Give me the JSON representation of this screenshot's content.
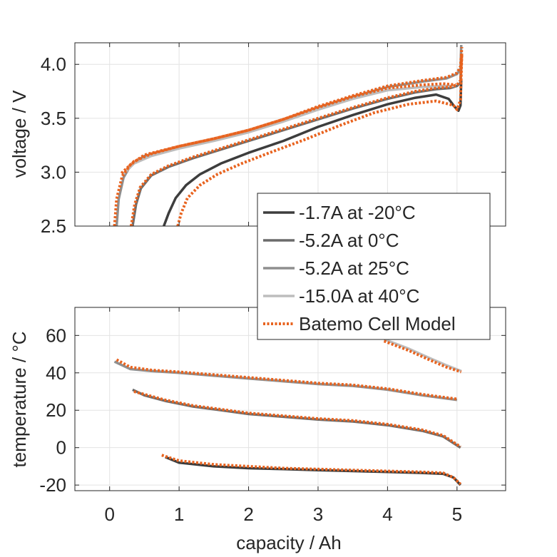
{
  "chart_data": [
    {
      "type": "line",
      "ylabel": "voltage / V",
      "xlim": [
        -0.5,
        5.7
      ],
      "ylim": [
        2.5,
        4.2
      ],
      "xticks": [
        0,
        1,
        2,
        3,
        4,
        5
      ],
      "yticks": [
        2.5,
        3.0,
        3.5,
        4.0
      ],
      "ytick_labels": [
        "2.5",
        "3.0",
        "3.5",
        "4.0"
      ],
      "grid": true,
      "series": [
        {
          "name": "-1.7A at -20°C",
          "color": "#3d3d3d",
          "style": "solid",
          "points": [
            [
              0.78,
              2.5
            ],
            [
              0.85,
              2.62
            ],
            [
              0.95,
              2.76
            ],
            [
              1.1,
              2.88
            ],
            [
              1.3,
              2.98
            ],
            [
              1.6,
              3.08
            ],
            [
              2.0,
              3.18
            ],
            [
              2.5,
              3.29
            ],
            [
              3.0,
              3.42
            ],
            [
              3.5,
              3.53
            ],
            [
              4.0,
              3.63
            ],
            [
              4.4,
              3.69
            ],
            [
              4.7,
              3.72
            ],
            [
              4.88,
              3.68
            ],
            [
              4.96,
              3.61
            ],
            [
              5.02,
              3.57
            ],
            [
              5.05,
              3.62
            ],
            [
              5.06,
              3.85
            ]
          ]
        },
        {
          "name": "-5.2A at 0°C",
          "color": "#6b6b6b",
          "style": "solid",
          "points": [
            [
              0.33,
              2.5
            ],
            [
              0.38,
              2.7
            ],
            [
              0.45,
              2.85
            ],
            [
              0.6,
              2.97
            ],
            [
              0.85,
              3.05
            ],
            [
              1.2,
              3.13
            ],
            [
              1.6,
              3.21
            ],
            [
              2.0,
              3.29
            ],
            [
              2.5,
              3.39
            ],
            [
              3.0,
              3.49
            ],
            [
              3.5,
              3.59
            ],
            [
              4.0,
              3.68
            ],
            [
              4.4,
              3.74
            ],
            [
              4.7,
              3.77
            ],
            [
              4.9,
              3.78
            ],
            [
              5.0,
              3.8
            ],
            [
              5.05,
              3.83
            ],
            [
              5.06,
              4.1
            ]
          ]
        },
        {
          "name": "-5.2A at 25°C",
          "color": "#8f8f8f",
          "style": "solid",
          "points": [
            [
              0.1,
              2.5
            ],
            [
              0.13,
              2.75
            ],
            [
              0.2,
              2.95
            ],
            [
              0.3,
              3.06
            ],
            [
              0.5,
              3.15
            ],
            [
              1.0,
              3.23
            ],
            [
              1.5,
              3.3
            ],
            [
              2.0,
              3.38
            ],
            [
              2.5,
              3.48
            ],
            [
              3.0,
              3.6
            ],
            [
              3.5,
              3.7
            ],
            [
              4.0,
              3.79
            ],
            [
              4.5,
              3.84
            ],
            [
              4.85,
              3.87
            ],
            [
              5.0,
              3.91
            ],
            [
              5.05,
              3.96
            ],
            [
              5.06,
              4.18
            ]
          ]
        },
        {
          "name": "-15.0A at 40°C",
          "color": "#bdbdbd",
          "style": "solid",
          "points": [
            [
              0.18,
              2.97
            ],
            [
              0.35,
              3.08
            ],
            [
              0.6,
              3.15
            ],
            [
              1.0,
              3.22
            ],
            [
              1.5,
              3.29
            ],
            [
              2.0,
              3.37
            ],
            [
              2.5,
              3.47
            ],
            [
              3.0,
              3.58
            ],
            [
              3.5,
              3.68
            ],
            [
              4.0,
              3.76
            ],
            [
              4.5,
              3.79
            ],
            [
              4.8,
              3.8
            ],
            [
              4.98,
              3.8
            ]
          ]
        },
        {
          "name": "Batemo Cell Model",
          "color": "#e8631f",
          "style": "dotted",
          "points": [
            [
              0.98,
              2.5
            ],
            [
              1.03,
              2.62
            ],
            [
              1.12,
              2.76
            ],
            [
              1.3,
              2.88
            ],
            [
              1.55,
              2.98
            ],
            [
              1.9,
              3.08
            ],
            [
              2.3,
              3.18
            ],
            [
              2.8,
              3.3
            ],
            [
              3.3,
              3.43
            ],
            [
              3.8,
              3.55
            ],
            [
              4.3,
              3.63
            ],
            [
              4.7,
              3.66
            ],
            [
              4.95,
              3.62
            ],
            [
              5.0,
              3.58
            ],
            [
              5.05,
              3.67
            ],
            [
              5.07,
              4.1
            ]
          ]
        },
        {
          "name": "Batemo Cell Model",
          "color": "#e8631f",
          "style": "dotted",
          "points": [
            [
              0.31,
              2.5
            ],
            [
              0.36,
              2.7
            ],
            [
              0.44,
              2.86
            ],
            [
              0.6,
              2.98
            ],
            [
              0.85,
              3.06
            ],
            [
              1.2,
              3.14
            ],
            [
              1.6,
              3.22
            ],
            [
              2.0,
              3.3
            ],
            [
              2.5,
              3.4
            ],
            [
              3.0,
              3.5
            ],
            [
              3.5,
              3.6
            ],
            [
              4.0,
              3.69
            ],
            [
              4.4,
              3.75
            ],
            [
              4.7,
              3.78
            ],
            [
              4.9,
              3.79
            ],
            [
              5.0,
              3.81
            ],
            [
              5.05,
              3.85
            ],
            [
              5.07,
              4.1
            ]
          ]
        },
        {
          "name": "Batemo Cell Model",
          "color": "#e8631f",
          "style": "dotted",
          "points": [
            [
              0.07,
              2.5
            ],
            [
              0.1,
              2.75
            ],
            [
              0.18,
              2.96
            ],
            [
              0.3,
              3.07
            ],
            [
              0.5,
              3.16
            ],
            [
              1.0,
              3.24
            ],
            [
              1.5,
              3.31
            ],
            [
              2.0,
              3.39
            ],
            [
              2.5,
              3.49
            ],
            [
              3.0,
              3.61
            ],
            [
              3.5,
              3.71
            ],
            [
              4.0,
              3.8
            ],
            [
              4.5,
              3.85
            ],
            [
              4.85,
              3.88
            ],
            [
              5.0,
              3.92
            ],
            [
              5.05,
              3.98
            ],
            [
              5.07,
              4.16
            ]
          ]
        },
        {
          "name": "Batemo Cell Model",
          "color": "#e8631f",
          "style": "dotted",
          "points": [
            [
              0.17,
              2.99
            ],
            [
              0.35,
              3.1
            ],
            [
              0.6,
              3.17
            ],
            [
              1.0,
              3.24
            ],
            [
              1.5,
              3.31
            ],
            [
              2.0,
              3.39
            ],
            [
              2.5,
              3.49
            ],
            [
              3.0,
              3.6
            ],
            [
              3.5,
              3.7
            ],
            [
              4.0,
              3.78
            ],
            [
              4.5,
              3.81
            ],
            [
              4.8,
              3.82
            ],
            [
              4.98,
              3.81
            ]
          ]
        }
      ]
    },
    {
      "type": "line",
      "xlabel": "capacity / Ah",
      "ylabel": "temperature / °C",
      "xlim": [
        -0.5,
        5.7
      ],
      "ylim": [
        -23,
        75
      ],
      "xticks": [
        0,
        1,
        2,
        3,
        4,
        5
      ],
      "yticks": [
        -20,
        0,
        20,
        40,
        60
      ],
      "grid": true,
      "series": [
        {
          "name": "-1.7A at -20°C",
          "color": "#3d3d3d",
          "style": "solid",
          "points": [
            [
              0.8,
              -5
            ],
            [
              1.0,
              -8
            ],
            [
              1.5,
              -10
            ],
            [
              2.0,
              -11
            ],
            [
              2.5,
              -11.5
            ],
            [
              3.0,
              -12
            ],
            [
              3.5,
              -12.5
            ],
            [
              4.0,
              -13
            ],
            [
              4.5,
              -13.5
            ],
            [
              4.8,
              -14
            ],
            [
              4.95,
              -16
            ],
            [
              5.05,
              -20
            ]
          ]
        },
        {
          "name": "-5.2A at 0°C",
          "color": "#6b6b6b",
          "style": "solid",
          "points": [
            [
              0.33,
              31
            ],
            [
              0.5,
              28
            ],
            [
              0.8,
              25
            ],
            [
              1.2,
              22
            ],
            [
              1.6,
              20
            ],
            [
              2.0,
              18
            ],
            [
              2.5,
              16.5
            ],
            [
              3.0,
              15
            ],
            [
              3.5,
              14
            ],
            [
              4.0,
              12
            ],
            [
              4.5,
              9
            ],
            [
              4.8,
              6
            ],
            [
              5.05,
              0
            ]
          ]
        },
        {
          "name": "-5.2A at 25°C",
          "color": "#8f8f8f",
          "style": "solid",
          "points": [
            [
              0.07,
              46
            ],
            [
              0.3,
              42
            ],
            [
              0.6,
              41
            ],
            [
              1.0,
              40
            ],
            [
              1.5,
              38.5
            ],
            [
              2.0,
              37
            ],
            [
              2.5,
              35.5
            ],
            [
              3.0,
              34
            ],
            [
              3.5,
              33
            ],
            [
              4.0,
              31
            ],
            [
              4.5,
              28
            ],
            [
              4.8,
              26.5
            ],
            [
              5.0,
              25.5
            ]
          ]
        },
        {
          "name": "-15.0A at 40°C",
          "color": "#bdbdbd",
          "style": "solid",
          "points": [
            [
              3.95,
              58
            ],
            [
              4.3,
              53
            ],
            [
              4.6,
              48
            ],
            [
              4.85,
              44
            ],
            [
              5.06,
              41
            ]
          ]
        },
        {
          "name": "Batemo Cell Model",
          "color": "#e8631f",
          "style": "dotted",
          "points": [
            [
              0.75,
              -4
            ],
            [
              1.0,
              -7
            ],
            [
              1.5,
              -9
            ],
            [
              2.0,
              -10
            ],
            [
              2.5,
              -11
            ],
            [
              3.0,
              -11.5
            ],
            [
              3.5,
              -12
            ],
            [
              4.0,
              -12.5
            ],
            [
              4.5,
              -13
            ],
            [
              4.8,
              -13.5
            ],
            [
              4.95,
              -16
            ],
            [
              5.05,
              -19.5
            ]
          ]
        },
        {
          "name": "Batemo Cell Model",
          "color": "#e8631f",
          "style": "dotted",
          "points": [
            [
              0.35,
              30
            ],
            [
              0.5,
              28.5
            ],
            [
              0.8,
              25.5
            ],
            [
              1.2,
              22.5
            ],
            [
              1.6,
              20.5
            ],
            [
              2.0,
              18.5
            ],
            [
              2.5,
              17
            ],
            [
              3.0,
              15.5
            ],
            [
              3.5,
              14.5
            ],
            [
              4.0,
              12.5
            ],
            [
              4.5,
              9.5
            ],
            [
              4.8,
              6.5
            ],
            [
              5.05,
              0.5
            ]
          ]
        },
        {
          "name": "Batemo Cell Model",
          "color": "#e8631f",
          "style": "dotted",
          "points": [
            [
              0.1,
              47
            ],
            [
              0.3,
              43
            ],
            [
              0.6,
              41.5
            ],
            [
              1.0,
              40.5
            ],
            [
              1.5,
              39
            ],
            [
              2.0,
              37.5
            ],
            [
              2.5,
              36
            ],
            [
              3.0,
              34.5
            ],
            [
              3.5,
              33.5
            ],
            [
              4.0,
              31.5
            ],
            [
              4.5,
              28.5
            ],
            [
              4.8,
              27
            ],
            [
              5.0,
              26
            ]
          ]
        },
        {
          "name": "Batemo Cell Model",
          "color": "#e8631f",
          "style": "dotted",
          "points": [
            [
              3.95,
              57
            ],
            [
              4.3,
              52
            ],
            [
              4.6,
              47
            ],
            [
              4.85,
              43
            ],
            [
              5.06,
              40.5
            ]
          ]
        }
      ]
    }
  ],
  "legend": {
    "placement": "between-panels-right",
    "entries": [
      {
        "label": "-1.7A at -20°C",
        "color": "#3d3d3d",
        "style": "solid"
      },
      {
        "label": "-5.2A at 0°C",
        "color": "#6b6b6b",
        "style": "solid"
      },
      {
        "label": "-5.2A at 25°C",
        "color": "#8f8f8f",
        "style": "solid"
      },
      {
        "label": "-15.0A at 40°C",
        "color": "#bdbdbd",
        "style": "solid"
      },
      {
        "label": "Batemo Cell Model",
        "color": "#e8631f",
        "style": "dotted"
      }
    ]
  }
}
